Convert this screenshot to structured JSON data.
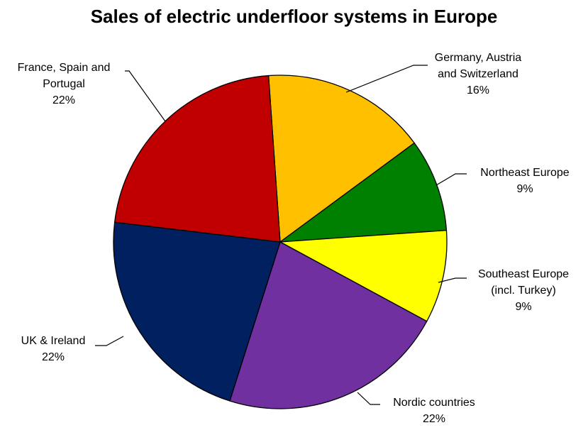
{
  "chart_data": {
    "type": "pie",
    "title": "Sales of electric underfloor systems in Europe",
    "start_angle_deg": 94,
    "direction": "clockwise",
    "slices": [
      {
        "name": "Germany, Austria and Switzerland",
        "label_lines": [
          "Germany, Austria",
          "and Switzerland"
        ],
        "value": 16,
        "percent_label": "16%",
        "color": "#FFC000"
      },
      {
        "name": "Northeast Europe",
        "label_lines": [
          "Northeast Europe"
        ],
        "value": 9,
        "percent_label": "9%",
        "color": "#008000"
      },
      {
        "name": "Southeast Europe (incl. Turkey)",
        "label_lines": [
          "Southeast Europe",
          "(incl. Turkey)"
        ],
        "value": 9,
        "percent_label": "9%",
        "color": "#FFFF00"
      },
      {
        "name": "Nordic countries",
        "label_lines": [
          "Nordic countries"
        ],
        "value": 22,
        "percent_label": "22%",
        "color": "#7030A0"
      },
      {
        "name": "UK & Ireland",
        "label_lines": [
          "UK & Ireland"
        ],
        "value": 22,
        "percent_label": "22%",
        "color": "#002060"
      },
      {
        "name": "France, Spain and Portugal",
        "label_lines": [
          "France, Spain and",
          "Portugal"
        ],
        "value": 22,
        "percent_label": "22%",
        "color": "#C00000"
      }
    ]
  }
}
